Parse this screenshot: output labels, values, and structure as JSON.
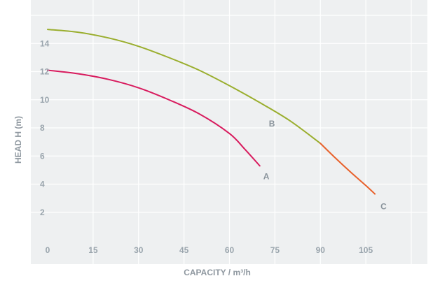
{
  "chart_data": {
    "type": "line",
    "title": "",
    "xlabel": "CAPACITY / m³/h",
    "ylabel": "HEAD H (m)",
    "xlim": [
      0,
      120
    ],
    "ylim": [
      0,
      16
    ],
    "x_ticks": [
      "0",
      "15",
      "30",
      "45",
      "60",
      "75",
      "90",
      "105"
    ],
    "y_ticks": [
      "2",
      "4",
      "6",
      "8",
      "10",
      "12",
      "14"
    ],
    "grid": true,
    "series": [
      {
        "name": "A",
        "color": "#d81b5e",
        "points": [
          [
            0,
            12.1
          ],
          [
            10,
            11.85
          ],
          [
            20,
            11.45
          ],
          [
            30,
            10.85
          ],
          [
            40,
            10.0
          ],
          [
            50,
            9.0
          ],
          [
            60,
            7.6
          ],
          [
            65,
            6.5
          ],
          [
            70,
            5.3
          ]
        ]
      },
      {
        "name": "B",
        "color": "#9aae2e",
        "points": [
          [
            0,
            15.0
          ],
          [
            10,
            14.8
          ],
          [
            20,
            14.4
          ],
          [
            30,
            13.8
          ],
          [
            40,
            13.0
          ],
          [
            50,
            12.1
          ],
          [
            60,
            11.0
          ],
          [
            70,
            9.8
          ],
          [
            80,
            8.5
          ],
          [
            90,
            6.9
          ]
        ]
      },
      {
        "name": "C",
        "color": "#e8612b",
        "points": [
          [
            90,
            6.9
          ],
          [
            95,
            5.85
          ],
          [
            100,
            4.85
          ],
          [
            105,
            3.9
          ],
          [
            108,
            3.3
          ]
        ]
      }
    ]
  }
}
